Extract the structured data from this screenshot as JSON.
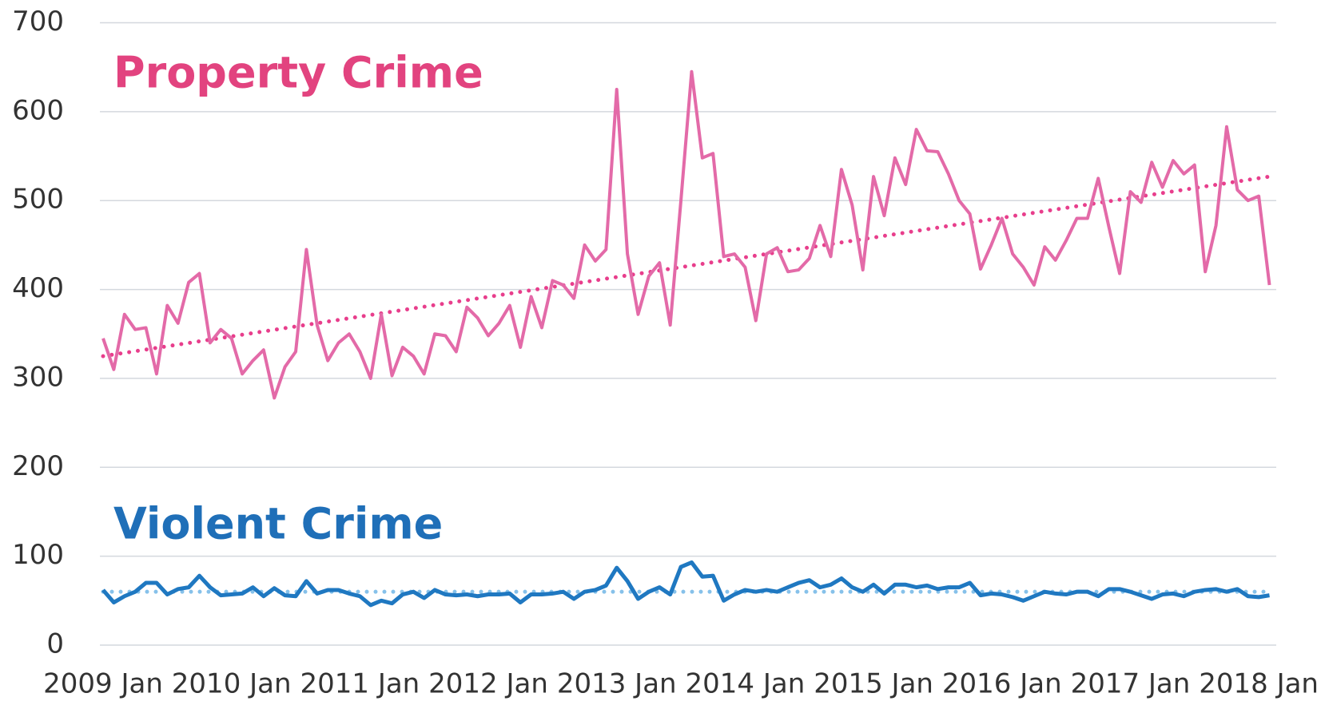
{
  "chart_data": {
    "type": "line",
    "x": [
      "2009-01",
      "2009-02",
      "2009-03",
      "2009-04",
      "2009-05",
      "2009-06",
      "2009-07",
      "2009-08",
      "2009-09",
      "2009-10",
      "2009-11",
      "2009-12",
      "2010-01",
      "2010-02",
      "2010-03",
      "2010-04",
      "2010-05",
      "2010-06",
      "2010-07",
      "2010-08",
      "2010-09",
      "2010-10",
      "2010-11",
      "2010-12",
      "2011-01",
      "2011-02",
      "2011-03",
      "2011-04",
      "2011-05",
      "2011-06",
      "2011-07",
      "2011-08",
      "2011-09",
      "2011-10",
      "2011-11",
      "2011-12",
      "2012-01",
      "2012-02",
      "2012-03",
      "2012-04",
      "2012-05",
      "2012-06",
      "2012-07",
      "2012-08",
      "2012-09",
      "2012-10",
      "2012-11",
      "2012-12",
      "2013-01",
      "2013-02",
      "2013-03",
      "2013-04",
      "2013-05",
      "2013-06",
      "2013-07",
      "2013-08",
      "2013-09",
      "2013-10",
      "2013-11",
      "2013-12",
      "2014-01",
      "2014-02",
      "2014-03",
      "2014-04",
      "2014-05",
      "2014-06",
      "2014-07",
      "2014-08",
      "2014-09",
      "2014-10",
      "2014-11",
      "2014-12",
      "2015-01",
      "2015-02",
      "2015-03",
      "2015-04",
      "2015-05",
      "2015-06",
      "2015-07",
      "2015-08",
      "2015-09",
      "2015-10",
      "2015-11",
      "2015-12",
      "2016-01",
      "2016-02",
      "2016-03",
      "2016-04",
      "2016-05",
      "2016-06",
      "2016-07",
      "2016-08",
      "2016-09",
      "2016-10",
      "2016-11",
      "2016-12",
      "2017-01",
      "2017-02",
      "2017-03",
      "2017-04",
      "2017-05",
      "2017-06",
      "2017-07",
      "2017-08",
      "2017-09",
      "2017-10",
      "2017-11",
      "2017-12",
      "2018-01",
      "2018-02"
    ],
    "series": [
      {
        "name": "Property Crime",
        "color": "#e36aa8",
        "label_color": "#e2437f",
        "trend_color": "#e83e8c",
        "trend": [
          325,
          527
        ],
        "values": [
          345,
          310,
          372,
          355,
          357,
          305,
          382,
          362,
          408,
          418,
          340,
          355,
          345,
          305,
          320,
          332,
          278,
          313,
          330,
          445,
          360,
          320,
          340,
          350,
          330,
          300,
          372,
          303,
          335,
          325,
          305,
          350,
          348,
          330,
          380,
          368,
          348,
          362,
          382,
          335,
          392,
          357,
          410,
          405,
          390,
          450,
          432,
          445,
          625,
          440,
          372,
          415,
          430,
          360,
          500,
          645,
          548,
          553,
          437,
          440,
          425,
          365,
          440,
          447,
          420,
          422,
          435,
          472,
          437,
          535,
          495,
          422,
          527,
          483,
          548,
          518,
          580,
          556,
          555,
          530,
          500,
          485,
          423,
          450,
          480,
          440,
          425,
          405,
          448,
          433,
          455,
          480,
          480,
          525,
          470,
          418,
          510,
          498,
          543,
          515,
          545,
          530,
          540,
          420,
          472,
          583,
          512,
          500,
          505,
          405
        ]
      },
      {
        "name": "Violent Crime",
        "color": "#1f78c1",
        "label_color": "#1f6fb8",
        "trend_color": "#86c1ea",
        "trend": [
          60,
          60
        ],
        "values": [
          62,
          48,
          55,
          60,
          70,
          70,
          57,
          63,
          65,
          78,
          65,
          56,
          57,
          58,
          65,
          55,
          64,
          56,
          55,
          72,
          58,
          62,
          62,
          58,
          55,
          45,
          50,
          47,
          57,
          60,
          53,
          62,
          57,
          56,
          57,
          55,
          57,
          57,
          58,
          48,
          57,
          57,
          58,
          60,
          52,
          60,
          62,
          67,
          87,
          72,
          52,
          60,
          65,
          57,
          88,
          93,
          77,
          78,
          50,
          57,
          62,
          60,
          62,
          60,
          65,
          70,
          73,
          65,
          68,
          75,
          65,
          60,
          68,
          58,
          68,
          68,
          65,
          67,
          63,
          65,
          65,
          70,
          56,
          58,
          57,
          54,
          50,
          55,
          60,
          58,
          57,
          60,
          60,
          55,
          63,
          63,
          60,
          56,
          52,
          57,
          58,
          55,
          60,
          62,
          63,
          60,
          63,
          55,
          54,
          56
        ]
      }
    ],
    "ylim": [
      0,
      700
    ],
    "yticks": [
      0,
      100,
      200,
      300,
      400,
      500,
      600,
      700
    ],
    "xticks": [
      {
        "value": "2009-01",
        "label": "2009 Jan"
      },
      {
        "value": "2010-01",
        "label": "2010 Jan"
      },
      {
        "value": "2011-01",
        "label": "2011 Jan"
      },
      {
        "value": "2012-01",
        "label": "2012 Jan"
      },
      {
        "value": "2013-01",
        "label": "2013 Jan"
      },
      {
        "value": "2014-01",
        "label": "2014 Jan"
      },
      {
        "value": "2015-01",
        "label": "2015 Jan"
      },
      {
        "value": "2016-01",
        "label": "2016 Jan"
      },
      {
        "value": "2017-01",
        "label": "2017 Jan"
      },
      {
        "value": "2018-01",
        "label": "2018 Jan"
      }
    ],
    "grid": true
  }
}
